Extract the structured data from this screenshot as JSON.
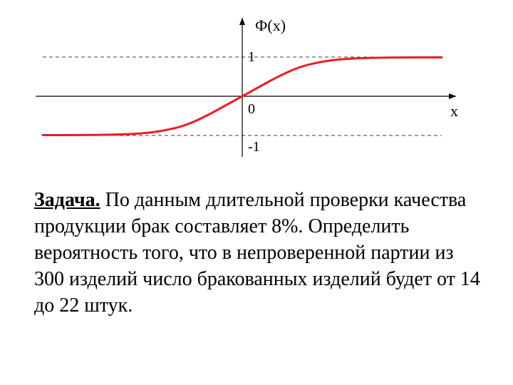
{
  "chart": {
    "type": "line",
    "y_axis_label": "Ф(x)",
    "x_axis_label": "x",
    "origin_label": "0",
    "upper_asymptote_label": "1",
    "lower_asymptote_label": "-1",
    "axis_color": "#000000",
    "axis_width": 1.2,
    "curve_color": "#ed1c24",
    "curve_width": 3,
    "asymptote_color": "#000000",
    "asymptote_dash": "5,4",
    "asymptote_width": 0.8,
    "background_color": "#ffffff",
    "label_fontsize": 22,
    "origin_fontsize": 20,
    "xlim": [
      -280,
      280
    ],
    "ylim": [
      -1.2,
      1.2
    ],
    "upper_asymptote_y": 1,
    "lower_asymptote_y": -1,
    "curve_points": [
      {
        "x": -280,
        "y": -0.99
      },
      {
        "x": -220,
        "y": -0.99
      },
      {
        "x": -180,
        "y": -0.98
      },
      {
        "x": -140,
        "y": -0.95
      },
      {
        "x": -110,
        "y": -0.88
      },
      {
        "x": -80,
        "y": -0.75
      },
      {
        "x": -50,
        "y": -0.5
      },
      {
        "x": -25,
        "y": -0.25
      },
      {
        "x": 0,
        "y": 0
      },
      {
        "x": 25,
        "y": 0.25
      },
      {
        "x": 50,
        "y": 0.5
      },
      {
        "x": 80,
        "y": 0.75
      },
      {
        "x": 110,
        "y": 0.88
      },
      {
        "x": 140,
        "y": 0.95
      },
      {
        "x": 180,
        "y": 0.98
      },
      {
        "x": 220,
        "y": 0.99
      },
      {
        "x": 280,
        "y": 0.99
      }
    ]
  },
  "text": {
    "task_label": "Задача.",
    "body": " По данным длительной проверки ка­чества продукции брак составляет 8%. Опре­делить вероятность того, что в непроверенной партии из 300 изделий число бракованных изделий будет от 14 до 22 штук."
  }
}
